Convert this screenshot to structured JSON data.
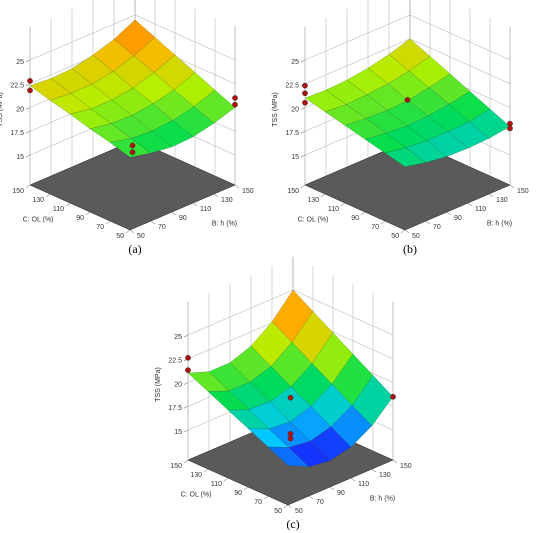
{
  "chart_data": [
    {
      "type": "surface",
      "label": "(a)",
      "zlabel": "TSS (MPa)",
      "xlabel": "B: h (%)",
      "ylabel": "C: OL (%)",
      "x": [
        50,
        70,
        90,
        110,
        130,
        150
      ],
      "y": [
        50,
        70,
        90,
        110,
        130,
        150
      ],
      "z": [
        [
          19.5,
          19.0,
          18.7,
          18.8,
          19.3,
          20.0
        ],
        [
          20.1,
          19.6,
          19.4,
          19.6,
          20.1,
          20.9
        ],
        [
          20.6,
          20.2,
          20.1,
          20.4,
          20.9,
          21.8
        ],
        [
          21.2,
          20.8,
          20.8,
          21.1,
          21.8,
          22.7
        ],
        [
          21.7,
          21.5,
          21.5,
          21.9,
          22.6,
          23.6
        ],
        [
          22.3,
          22.1,
          22.2,
          22.7,
          23.4,
          24.5
        ]
      ],
      "xlim": [
        50,
        150
      ],
      "ylim": [
        50,
        150
      ],
      "zlim": [
        15,
        25
      ],
      "xticks": [
        50,
        70,
        90,
        110,
        130,
        150
      ],
      "yticks": [
        50,
        70,
        90,
        110,
        130,
        150
      ],
      "zticks": [
        15,
        17.5,
        20,
        22.5,
        25
      ],
      "colormap": [
        "#1a1aff",
        "#00c8ff",
        "#00dc50",
        "#b4f000",
        "#ffb400",
        "#ff5a00"
      ],
      "points": {
        "color": "#b01010",
        "x": [
          50,
          50,
          150,
          150,
          100,
          100
        ],
        "y": [
          150,
          150,
          50,
          50,
          100,
          100
        ],
        "z": [
          22.8,
          21.8,
          21.0,
          20.3,
          16.0,
          15.3
        ]
      }
    },
    {
      "type": "surface",
      "label": "(b)",
      "zlabel": "TSS (MPa)",
      "xlabel": "B: h (%)",
      "ylabel": "C: OL (%)",
      "x": [
        50,
        70,
        90,
        110,
        130,
        150
      ],
      "y": [
        50,
        70,
        90,
        110,
        130,
        150
      ],
      "z": [
        [
          18.5,
          18.0,
          17.7,
          17.6,
          17.7,
          18.0
        ],
        [
          19.0,
          18.6,
          18.4,
          18.4,
          18.5,
          18.9
        ],
        [
          19.5,
          19.2,
          19.0,
          19.1,
          19.4,
          19.8
        ],
        [
          20.0,
          19.8,
          19.7,
          19.8,
          20.2,
          20.7
        ],
        [
          20.5,
          20.3,
          20.4,
          20.6,
          21.0,
          21.6
        ],
        [
          21.0,
          20.9,
          21.0,
          21.3,
          21.8,
          22.5
        ]
      ],
      "xlim": [
        50,
        150
      ],
      "ylim": [
        50,
        150
      ],
      "zlim": [
        15,
        25
      ],
      "xticks": [
        50,
        70,
        90,
        110,
        130,
        150
      ],
      "yticks": [
        50,
        70,
        90,
        110,
        130,
        150
      ],
      "zticks": [
        15,
        17.5,
        20,
        22.5,
        25
      ],
      "colormap": [
        "#1a1aff",
        "#00c8ff",
        "#00dc50",
        "#b4f000",
        "#ffb400",
        "#ff5a00"
      ],
      "points": {
        "color": "#b01010",
        "x": [
          50,
          50,
          50,
          100,
          150,
          150
        ],
        "y": [
          150,
          150,
          150,
          100,
          50,
          50
        ],
        "z": [
          22.3,
          21.5,
          20.5,
          20.8,
          18.3,
          17.8
        ]
      }
    },
    {
      "type": "surface",
      "label": "(c)",
      "zlabel": "TSS (MPa)",
      "xlabel": "B: h (%)",
      "ylabel": "C: OL (%)",
      "x": [
        50,
        70,
        90,
        110,
        130,
        150
      ],
      "y": [
        50,
        70,
        90,
        110,
        130,
        150
      ],
      "z": [
        [
          16.0,
          14.9,
          14.6,
          15.1,
          16.4,
          18.5
        ],
        [
          17.0,
          16.0,
          15.7,
          16.3,
          17.6,
          19.8
        ],
        [
          18.0,
          17.0,
          16.8,
          17.5,
          18.9,
          21.1
        ],
        [
          19.0,
          18.1,
          18.0,
          18.6,
          20.1,
          22.4
        ],
        [
          20.0,
          19.1,
          19.1,
          19.8,
          21.4,
          23.7
        ],
        [
          21.0,
          20.2,
          20.2,
          21.0,
          22.6,
          25.0
        ]
      ],
      "xlim": [
        50,
        150
      ],
      "ylim": [
        50,
        150
      ],
      "zlim": [
        15,
        25
      ],
      "xticks": [
        50,
        70,
        90,
        110,
        130,
        150
      ],
      "yticks": [
        50,
        70,
        90,
        110,
        130,
        150
      ],
      "zticks": [
        15,
        17.5,
        20,
        22.5,
        25
      ],
      "colormap": [
        "#1a1aff",
        "#00c8ff",
        "#00dc50",
        "#b4f000",
        "#ffb400",
        "#ff5a00"
      ],
      "points": {
        "color": "#b01010",
        "x": [
          50,
          50,
          150,
          100,
          100,
          100
        ],
        "y": [
          150,
          150,
          50,
          100,
          100,
          100
        ],
        "z": [
          22.6,
          21.3,
          18.5,
          18.4,
          14.6,
          14.1
        ]
      }
    }
  ]
}
